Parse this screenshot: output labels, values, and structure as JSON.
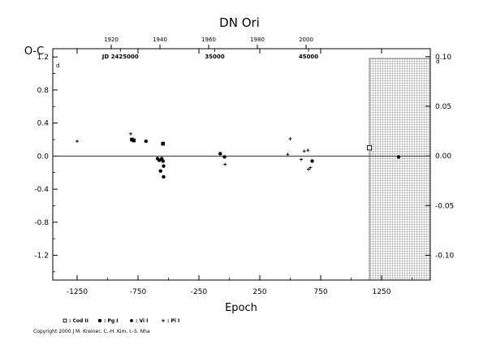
{
  "chart_data": {
    "type": "scatter",
    "title": "DN  Ori",
    "xlabel": "Epoch",
    "ylabel": "O-C",
    "y_unit": "d",
    "xlim": [
      -1450,
      1650
    ],
    "ylim": [
      -1.5,
      1.3
    ],
    "y2lim": [
      -0.125,
      0.108
    ],
    "x_ticks": [
      -1250,
      -750,
      -250,
      250,
      750,
      1250
    ],
    "x_tick_labels": [
      "-1250",
      "-750",
      "-250",
      "250",
      "750",
      "1250"
    ],
    "y_ticks": [
      1.2,
      0.8,
      0.4,
      0.0,
      -0.4,
      -0.8,
      -1.2
    ],
    "y_tick_labels": [
      "1.2",
      "0.8",
      "0.4",
      "0.0",
      "-0.4",
      "-0.8",
      "-1.2"
    ],
    "y2_ticks": [
      0.1,
      0.05,
      0.0,
      -0.05,
      -0.1
    ],
    "y2_tick_labels": [
      "0.10",
      "0.05",
      "0.00",
      "-0.05",
      "-0.10"
    ],
    "top_year_ticks": [
      1920,
      1940,
      1960,
      1980,
      2000
    ],
    "top_year_epochs": [
      -970,
      -570,
      -170,
      230,
      630
    ],
    "jd_labels": [
      {
        "text": "JD 2425000",
        "epoch": -895
      },
      {
        "text": "35000",
        "epoch": -120
      },
      {
        "text": "45000",
        "epoch": 650
      }
    ],
    "zero_line": 0.0,
    "future_region_start": 1150,
    "series": [
      {
        "name": "Cod II",
        "marker": "open-square",
        "points": [
          [
            1150,
            0.1
          ]
        ]
      },
      {
        "name": "Pg I",
        "marker": "filled-square",
        "points": [
          [
            -800,
            0.2
          ],
          [
            -785,
            0.19
          ],
          [
            -545,
            0.15
          ]
        ]
      },
      {
        "name": "Vi I",
        "marker": "filled-circle",
        "points": [
          [
            -685,
            0.18
          ],
          [
            -590,
            -0.03
          ],
          [
            -575,
            -0.05
          ],
          [
            -555,
            -0.03
          ],
          [
            -545,
            -0.06
          ],
          [
            -540,
            -0.12
          ],
          [
            -565,
            -0.18
          ],
          [
            -540,
            -0.25
          ],
          [
            -75,
            0.03
          ],
          [
            -40,
            -0.01
          ],
          [
            680,
            -0.06
          ],
          [
            1390,
            -0.01
          ]
        ]
      },
      {
        "name": "Pi I",
        "marker": "plus",
        "points": [
          [
            -1250,
            0.18
          ],
          [
            -810,
            0.27
          ],
          [
            -35,
            -0.1
          ],
          [
            500,
            0.21
          ],
          [
            590,
            -0.04
          ],
          [
            615,
            0.06
          ],
          [
            645,
            0.07
          ],
          [
            650,
            -0.16
          ],
          [
            665,
            -0.14
          ],
          [
            480,
            0.02
          ]
        ]
      }
    ],
    "legend_position": "bottom-left",
    "legend_labels": [
      "Cod II",
      "Pg I",
      "Vi I",
      "Pi I"
    ],
    "grid": false
  },
  "copyright": "Copyright 2000 J.M. Kreiner, C.-H. Kim, I.-S. Nha"
}
